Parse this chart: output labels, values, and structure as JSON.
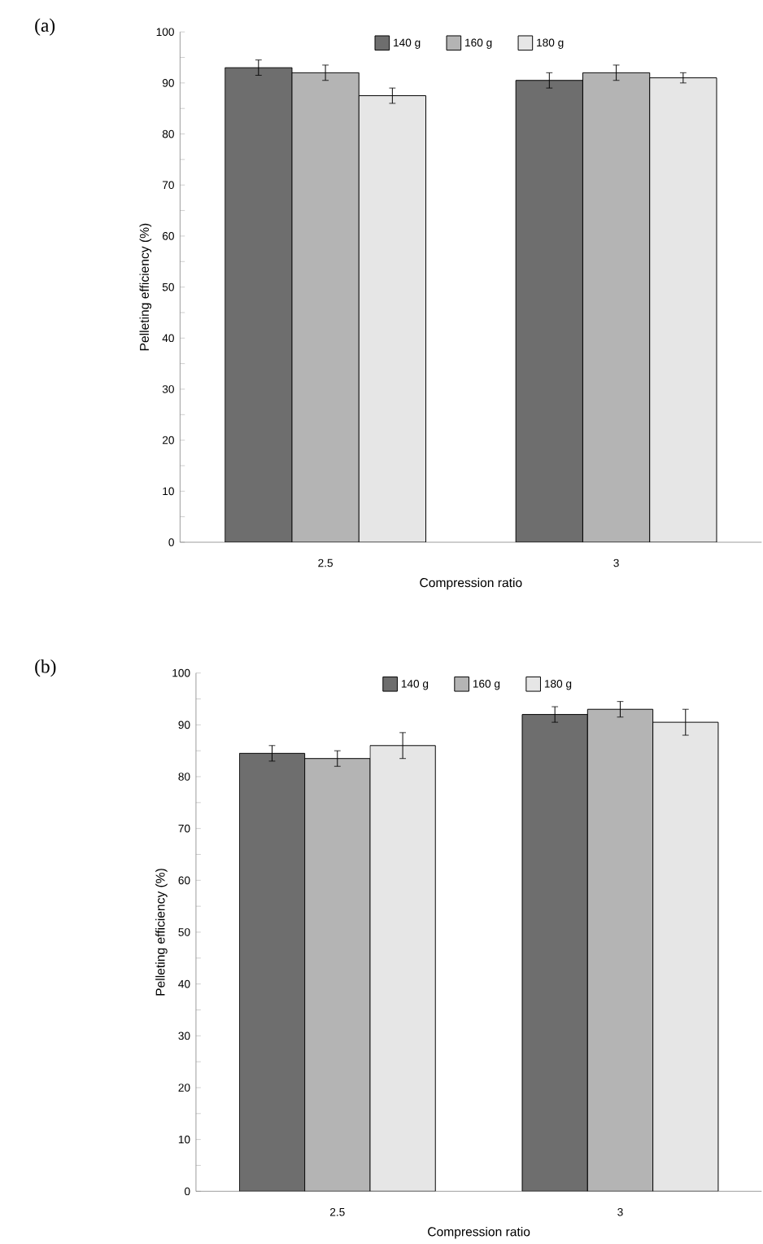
{
  "chart_data": [
    {
      "type": "bar",
      "annotations": [
        "(a)"
      ],
      "xlabel": "Compression ratio",
      "ylabel": "Pelleting efficiency (%)",
      "categories": [
        "2.5",
        "3"
      ],
      "series": [
        {
          "name": "140 g",
          "color": "#6e6e6e",
          "values": [
            93,
            90.5
          ],
          "errors": [
            1.5,
            1.5
          ]
        },
        {
          "name": "160 g",
          "color": "#b4b4b4",
          "values": [
            92,
            92
          ],
          "errors": [
            1.5,
            1.5
          ]
        },
        {
          "name": "180 g",
          "color": "#e6e6e6",
          "values": [
            87.5,
            91
          ],
          "errors": [
            1.5,
            1
          ]
        }
      ],
      "ylim": [
        0,
        100
      ],
      "yticks": [
        0,
        {
          "value": 5,
          "label": null
        },
        10,
        {
          "value": 15,
          "label": null
        },
        20,
        {
          "value": 25,
          "label": null
        },
        30,
        {
          "value": 35,
          "label": null
        },
        40,
        {
          "value": 45,
          "label": null
        },
        50,
        {
          "value": 55,
          "label": null
        },
        60,
        {
          "value": 65,
          "label": null
        },
        70,
        {
          "value": 75,
          "label": null
        },
        80,
        {
          "value": 85,
          "label": null
        },
        90,
        {
          "value": 95,
          "label": null
        },
        100
      ],
      "legend": "top"
    },
    {
      "type": "bar",
      "annotations": [
        "(b)"
      ],
      "xlabel": "Compression ratio",
      "ylabel": "Pelleting efficiency (%)",
      "categories": [
        "2.5",
        "3"
      ],
      "series": [
        {
          "name": "140 g",
          "color": "#6e6e6e",
          "values": [
            84.5,
            92
          ],
          "errors": [
            1.5,
            1.5
          ]
        },
        {
          "name": "160 g",
          "color": "#b4b4b4",
          "values": [
            83.5,
            93
          ],
          "errors": [
            1.5,
            1.5
          ]
        },
        {
          "name": "180 g",
          "color": "#e6e6e6",
          "values": [
            86,
            90.5
          ],
          "errors": [
            2.5,
            2.5
          ]
        }
      ],
      "ylim": [
        0,
        100
      ],
      "yticks": [
        0,
        {
          "value": 5,
          "label": null
        },
        10,
        {
          "value": 15,
          "label": null
        },
        20,
        {
          "value": 25,
          "label": null
        },
        30,
        {
          "value": 35,
          "label": null
        },
        40,
        {
          "value": 45,
          "label": null
        },
        50,
        {
          "value": 55,
          "label": null
        },
        60,
        {
          "value": 65,
          "label": null
        },
        70,
        {
          "value": 75,
          "label": null
        },
        80,
        {
          "value": 85,
          "label": null
        },
        90,
        {
          "value": 95,
          "label": null
        },
        100
      ],
      "legend": "top"
    }
  ]
}
